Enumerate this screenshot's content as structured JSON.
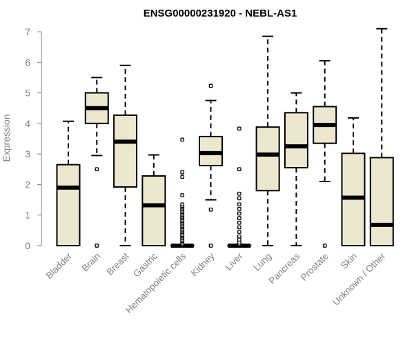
{
  "chart_data": {
    "type": "boxplot",
    "title": "ENSG00000231920 - NEBL-AS1",
    "xlabel": "",
    "ylabel": "Expression",
    "ylim": [
      0,
      7
    ],
    "yticks": [
      0,
      1,
      2,
      3,
      4,
      5,
      6,
      7
    ],
    "colors": {
      "box_fill": "#ede7cf",
      "stroke": "#000000",
      "axis": "#808080",
      "title": "#000000"
    },
    "categories": [
      "Bladder",
      "Brain",
      "Breast",
      "Gastric",
      "Hematopoietic cells",
      "Kidney",
      "Liver",
      "Lung",
      "Pancreas",
      "Prostate",
      "Skin",
      "Unknown / Other"
    ],
    "boxes": [
      {
        "category": "Bladder",
        "min": 0,
        "q1": 0,
        "median": 1.9,
        "q3": 2.65,
        "max": 4.07,
        "outliers": []
      },
      {
        "category": "Brain",
        "min": 2.95,
        "q1": 4.0,
        "median": 4.5,
        "q3": 5.0,
        "max": 5.5,
        "outliers": [
          2.5,
          0
        ]
      },
      {
        "category": "Breast",
        "min": 0,
        "q1": 1.92,
        "median": 3.4,
        "q3": 4.27,
        "max": 5.9,
        "outliers": []
      },
      {
        "category": "Gastric",
        "min": 0,
        "q1": 0,
        "median": 1.32,
        "q3": 2.28,
        "max": 2.97,
        "outliers": []
      },
      {
        "category": "Hematopoietic cells",
        "min": 0,
        "q1": 0,
        "median": 0,
        "q3": 0,
        "max": 0,
        "outliers": [
          0.05,
          0.1,
          0.15,
          0.2,
          0.25,
          0.3,
          0.35,
          0.4,
          0.45,
          0.5,
          0.55,
          0.6,
          0.65,
          0.7,
          0.75,
          0.8,
          0.85,
          0.9,
          0.95,
          1.0,
          1.05,
          1.1,
          1.15,
          1.2,
          1.25,
          1.3,
          1.35,
          1.65,
          2.25,
          2.4,
          3.47
        ]
      },
      {
        "category": "Kidney",
        "min": 1.5,
        "q1": 2.62,
        "median": 3.03,
        "q3": 3.57,
        "max": 4.75,
        "outliers": [
          5.23,
          1.18,
          0
        ]
      },
      {
        "category": "Liver",
        "min": 0,
        "q1": 0,
        "median": 0,
        "q3": 0,
        "max": 0,
        "outliers": [
          0.05,
          0.1,
          0.2,
          0.3,
          0.45,
          0.6,
          0.75,
          0.9,
          1.05,
          1.2,
          1.35,
          1.55,
          1.7,
          2.5,
          3.83
        ]
      },
      {
        "category": "Lung",
        "min": 0,
        "q1": 1.8,
        "median": 2.98,
        "q3": 3.88,
        "max": 6.85,
        "outliers": []
      },
      {
        "category": "Pancreas",
        "min": 0,
        "q1": 2.55,
        "median": 3.25,
        "q3": 4.35,
        "max": 5.0,
        "outliers": []
      },
      {
        "category": "Prostate",
        "min": 2.1,
        "q1": 3.35,
        "median": 3.95,
        "q3": 4.55,
        "max": 6.05,
        "outliers": [
          0
        ]
      },
      {
        "category": "Skin",
        "min": 0,
        "q1": 0,
        "median": 1.57,
        "q3": 3.02,
        "max": 4.18,
        "outliers": []
      },
      {
        "category": "Unknown / Other",
        "min": 0,
        "q1": 0,
        "median": 0.68,
        "q3": 2.88,
        "max": 7.1,
        "outliers": []
      }
    ]
  }
}
